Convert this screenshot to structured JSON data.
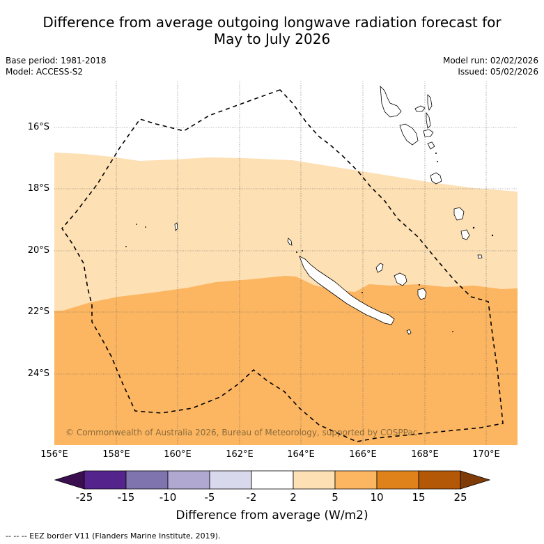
{
  "title": {
    "line1": "Difference from average outgoing longwave radiation forecast for",
    "line2": "May to July 2026"
  },
  "meta": {
    "base_period": "Base period: 1981-2018",
    "model": "Model: ACCESS-S2",
    "model_run": "Model run: 02/02/2026",
    "issued": "Issued: 05/02/2026"
  },
  "axes": {
    "lat_labels": [
      "16°S",
      "18°S",
      "20°S",
      "22°S",
      "24°S"
    ],
    "lon_labels": [
      "156°E",
      "158°E",
      "160°E",
      "162°E",
      "164°E",
      "166°E",
      "168°E",
      "170°E"
    ]
  },
  "colorbar": {
    "tick_labels": [
      "-25",
      "-15",
      "-10",
      "-5",
      "-2",
      "2",
      "5",
      "10",
      "15",
      "25"
    ],
    "colors": {
      "below_min": "#3b0f4f",
      "bins": [
        "#54248c",
        "#8074ae",
        "#b1a8d2",
        "#d8d9ec",
        "#ffffff",
        "#fde0b4",
        "#fcb662",
        "#e0821a",
        "#b35807"
      ],
      "above_max": "#7f3b08"
    },
    "label": "Difference from average (W/m2)"
  },
  "legend_note": "--  --  -- EEZ border V11 (Flanders Marine Institute, 2019).",
  "credit": "© Commonwealth of Australia 2026, Bureau of Meteorology, supported by COSPPac"
}
